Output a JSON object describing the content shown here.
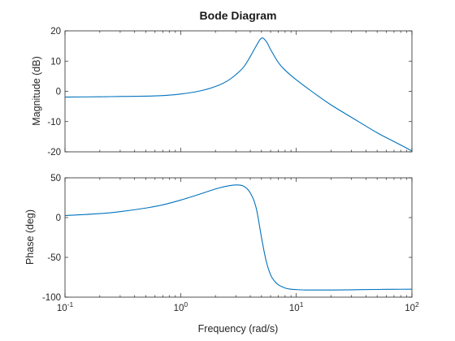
{
  "chart_data": {
    "type": "line",
    "title": "Bode Diagram",
    "xlabel": "Frequency (rad/s)",
    "x_scale": "log",
    "xlim": [
      0.1,
      100
    ],
    "x_tick_labels": [
      "10-1",
      "100",
      "101",
      "102"
    ],
    "x_ticks": [
      {
        "base": "10",
        "exp": "-1"
      },
      {
        "base": "10",
        "exp": "0"
      },
      {
        "base": "10",
        "exp": "1"
      },
      {
        "base": "10",
        "exp": "2"
      }
    ],
    "line_color": "#0072BD",
    "grid": false,
    "panels": [
      {
        "ylabel": "Magnitude (dB)",
        "ylim": [
          -20,
          20
        ],
        "yticks": [
          -20,
          -10,
          0,
          10,
          20
        ],
        "series": [
          {
            "x": [
              0.1,
              0.2,
              0.3,
              0.5,
              0.7,
              1,
              1.5,
              2,
              2.5,
              3,
              3.5,
              4,
              4.5,
              5,
              5.5,
              6,
              7,
              8,
              10,
              15,
              20,
              30,
              50,
              70,
              100
            ],
            "y": [
              -1.9,
              -1.8,
              -1.7,
              -1.6,
              -1.4,
              -0.9,
              0.2,
              1.6,
              3.3,
              5.5,
              8.0,
              11.5,
              15.0,
              17.6,
              16.5,
              13.8,
              9.5,
              7.0,
              3.8,
              -1.2,
              -4.5,
              -8.6,
              -13.7,
              -16.6,
              -19.7
            ]
          }
        ]
      },
      {
        "ylabel": "Phase (deg)",
        "ylim": [
          -100,
          50
        ],
        "yticks": [
          -100,
          -50,
          0,
          50
        ],
        "series": [
          {
            "x": [
              0.1,
              0.2,
              0.3,
              0.5,
              0.7,
              1,
              1.5,
              2,
              2.5,
              3,
              3.5,
              4,
              4.5,
              5,
              5.5,
              6,
              6.5,
              7,
              8,
              9,
              10,
              12,
              15,
              20,
              30,
              50,
              70,
              100
            ],
            "y": [
              2.5,
              5,
              7.5,
              12,
              16,
              22,
              30,
              36,
              39.5,
              41,
              39.5,
              31,
              12,
              -25,
              -55,
              -72,
              -80,
              -84.5,
              -88.5,
              -90,
              -90.5,
              -91,
              -91,
              -91,
              -90.7,
              -90.3,
              -90.1,
              -90
            ]
          }
        ]
      }
    ]
  }
}
